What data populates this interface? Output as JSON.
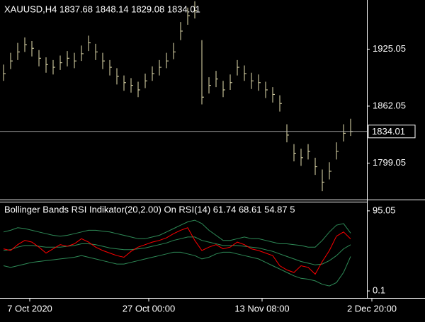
{
  "chart_data": [
    {
      "type": "ohlc",
      "title": "XAUUSD,H4  1837.68 1848.14 1829.08 1834.01",
      "color": "#e6e0b0",
      "high": [
        1908,
        1921,
        1932,
        1938,
        1934,
        1924,
        1916,
        1913,
        1918,
        1923,
        1921,
        1929,
        1940,
        1931,
        1921,
        1913,
        1904,
        1896,
        1893,
        1889,
        1898,
        1906,
        1913,
        1921,
        1932,
        1955,
        1971,
        1978,
        1935,
        1894,
        1901,
        1890,
        1897,
        1913,
        1907,
        1899,
        1897,
        1889,
        1883,
        1874,
        1842,
        1820,
        1815,
        1820,
        1805,
        1792,
        1800,
        1822,
        1842,
        1848.14
      ],
      "low": [
        1890,
        1903,
        1913,
        1922,
        1917,
        1906,
        1899,
        1897,
        1902,
        1906,
        1904,
        1912,
        1923,
        1913,
        1903,
        1896,
        1886,
        1879,
        1877,
        1872,
        1882,
        1890,
        1896,
        1904,
        1914,
        1935,
        1952,
        1959,
        1864,
        1876,
        1883,
        1872,
        1880,
        1896,
        1890,
        1881,
        1879,
        1871,
        1866,
        1856,
        1822,
        1801,
        1796,
        1803,
        1786,
        1768,
        1781,
        1803,
        1823,
        1829.08
      ],
      "close": [
        1898,
        1912,
        1922,
        1930,
        1926,
        1915,
        1908,
        1905,
        1910,
        1915,
        1912,
        1920,
        1932,
        1922,
        1912,
        1905,
        1895,
        1888,
        1885,
        1880,
        1890,
        1898,
        1905,
        1912,
        1922,
        1945,
        1962,
        1968,
        1872,
        1885,
        1892,
        1880,
        1888,
        1905,
        1898,
        1890,
        1888,
        1880,
        1875,
        1865,
        1830,
        1810,
        1805,
        1812,
        1795,
        1778,
        1790,
        1812,
        1832,
        1834.01
      ],
      "xlim": [
        -0.5,
        51.3
      ],
      "ylim": [
        1758.7,
        1979.4
      ],
      "yticks": [
        1925.05,
        1862.05,
        1799.05
      ]
    },
    {
      "type": "line",
      "title": "Bollinger Bands RSI Indikator(20,2.00) On RSI(14) 61.74 68.61 54.87 5",
      "series": [
        {
          "color": "#2e8b57",
          "values": [
            70,
            72,
            75,
            74,
            72,
            70,
            68,
            66,
            65,
            66,
            68,
            70,
            72,
            72,
            71,
            70,
            68,
            66,
            64,
            62,
            62,
            64,
            66,
            70,
            74,
            78,
            82,
            84,
            80,
            72,
            66,
            60,
            60,
            62,
            64,
            62,
            62,
            60,
            58,
            56,
            56,
            55,
            54,
            52,
            52,
            60,
            70,
            78,
            80,
            68.61
          ]
        },
        {
          "color": "#2e8b57",
          "values": [
            48,
            49,
            52,
            54,
            54,
            53,
            52,
            52,
            52,
            53,
            54,
            56,
            56,
            55,
            53,
            51,
            50,
            49,
            49,
            50,
            51,
            53,
            55,
            57,
            60,
            62,
            64,
            64,
            60,
            58,
            56,
            54,
            54,
            54,
            53,
            52,
            51,
            49,
            47,
            44,
            41,
            38,
            35,
            33,
            31,
            32,
            36,
            42,
            50,
            54.87
          ]
        },
        {
          "color": "#2e8b57",
          "values": [
            30,
            28,
            30,
            32,
            34,
            35,
            36,
            37,
            38,
            39,
            40,
            42,
            40,
            38,
            36,
            34,
            32,
            32,
            34,
            36,
            38,
            40,
            42,
            44,
            46,
            46,
            44,
            42,
            38,
            40,
            44,
            46,
            46,
            44,
            42,
            40,
            38,
            34,
            30,
            26,
            22,
            18,
            15,
            14,
            12,
            8,
            6,
            10,
            22,
            41
          ]
        },
        {
          "color": "#ff0000",
          "values": [
            50,
            48,
            55,
            60,
            58,
            52,
            45,
            50,
            55,
            53,
            56,
            62,
            58,
            52,
            48,
            45,
            42,
            40,
            47,
            52,
            55,
            58,
            60,
            63,
            68,
            72,
            75,
            60,
            48,
            52,
            55,
            50,
            52,
            58,
            55,
            50,
            48,
            45,
            42,
            30,
            25,
            22,
            30,
            28,
            20,
            35,
            48,
            65,
            70,
            61.74
          ]
        }
      ],
      "xlim": [
        -0.5,
        51.3
      ],
      "ylim": [
        -8.2,
        105.05
      ],
      "yticks": [
        95.05,
        0.1
      ],
      "xticks": [
        {
          "value": 3.7,
          "label": "7 Oct 2020"
        },
        {
          "value": 20.5,
          "label": "27 Oct 00:00"
        },
        {
          "value": 36.5,
          "label": "13 Nov 08:00"
        },
        {
          "value": 52,
          "label": "2 Dec 20:00"
        }
      ]
    }
  ]
}
